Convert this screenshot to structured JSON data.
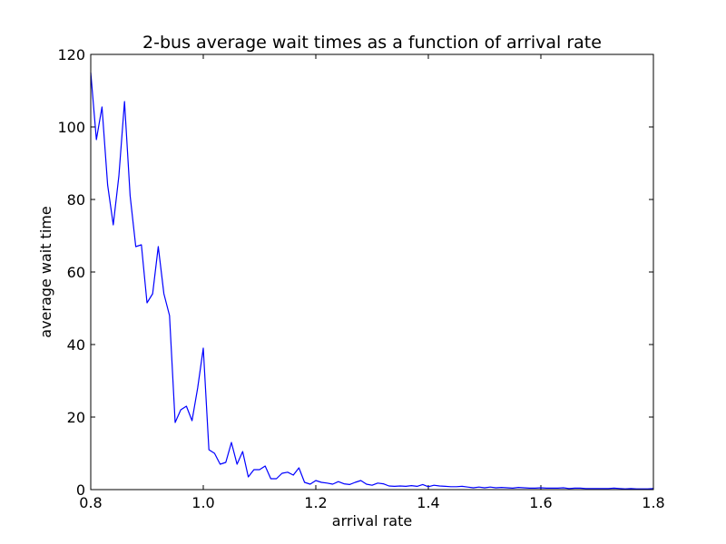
{
  "chart_data": {
    "type": "line",
    "title": "2-bus average wait times as a function of arrival rate",
    "xlabel": "arrival rate",
    "ylabel": "average wait time",
    "xlim": [
      0.8,
      1.8
    ],
    "ylim": [
      0,
      120
    ],
    "xticks": [
      "0.8",
      "1.0",
      "1.2",
      "1.4",
      "1.6",
      "1.8"
    ],
    "yticks": [
      "0",
      "20",
      "40",
      "60",
      "80",
      "100",
      "120"
    ],
    "grid": false,
    "line_color": "#0000ff",
    "x": [
      0.8,
      0.81,
      0.82,
      0.83,
      0.84,
      0.85,
      0.86,
      0.87,
      0.88,
      0.89,
      0.9,
      0.91,
      0.92,
      0.93,
      0.94,
      0.95,
      0.96,
      0.97,
      0.98,
      0.99,
      1.0,
      1.01,
      1.02,
      1.03,
      1.04,
      1.05,
      1.06,
      1.07,
      1.08,
      1.09,
      1.1,
      1.11,
      1.12,
      1.13,
      1.14,
      1.15,
      1.16,
      1.17,
      1.18,
      1.19,
      1.2,
      1.21,
      1.22,
      1.23,
      1.24,
      1.25,
      1.26,
      1.27,
      1.28,
      1.29,
      1.3,
      1.31,
      1.32,
      1.33,
      1.34,
      1.35,
      1.36,
      1.37,
      1.38,
      1.39,
      1.4,
      1.41,
      1.42,
      1.43,
      1.44,
      1.45,
      1.46,
      1.47,
      1.48,
      1.49,
      1.5,
      1.51,
      1.52,
      1.53,
      1.54,
      1.55,
      1.56,
      1.57,
      1.58,
      1.59,
      1.6,
      1.61,
      1.62,
      1.63,
      1.64,
      1.65,
      1.66,
      1.67,
      1.68,
      1.69,
      1.7,
      1.71,
      1.72,
      1.73,
      1.74,
      1.75,
      1.76,
      1.77,
      1.78,
      1.79,
      1.8
    ],
    "y": [
      115,
      96.5,
      105.5,
      84,
      73,
      86.5,
      107,
      81,
      67,
      67.5,
      51.5,
      54,
      67,
      54,
      48,
      18.5,
      22,
      23,
      19,
      28,
      39,
      11,
      10,
      7,
      7.5,
      13,
      7,
      10.5,
      3.5,
      5.5,
      5.5,
      6.5,
      3,
      3,
      4.5,
      4.8,
      4,
      6,
      2,
      1.5,
      2.5,
      2,
      1.8,
      1.5,
      2.2,
      1.6,
      1.4,
      2,
      2.5,
      1.5,
      1.2,
      1.8,
      1.6,
      1,
      0.9,
      1,
      0.9,
      1.1,
      0.9,
      1.4,
      0.8,
      1.2,
      1,
      0.9,
      0.8,
      0.8,
      0.9,
      0.7,
      0.5,
      0.7,
      0.5,
      0.7,
      0.5,
      0.6,
      0.5,
      0.4,
      0.6,
      0.5,
      0.4,
      0.4,
      0.5,
      0.4,
      0.4,
      0.4,
      0.5,
      0.3,
      0.4,
      0.4,
      0.3,
      0.3,
      0.3,
      0.3,
      0.3,
      0.4,
      0.3,
      0.2,
      0.3,
      0.2,
      0.2,
      0.2,
      0.3
    ]
  }
}
